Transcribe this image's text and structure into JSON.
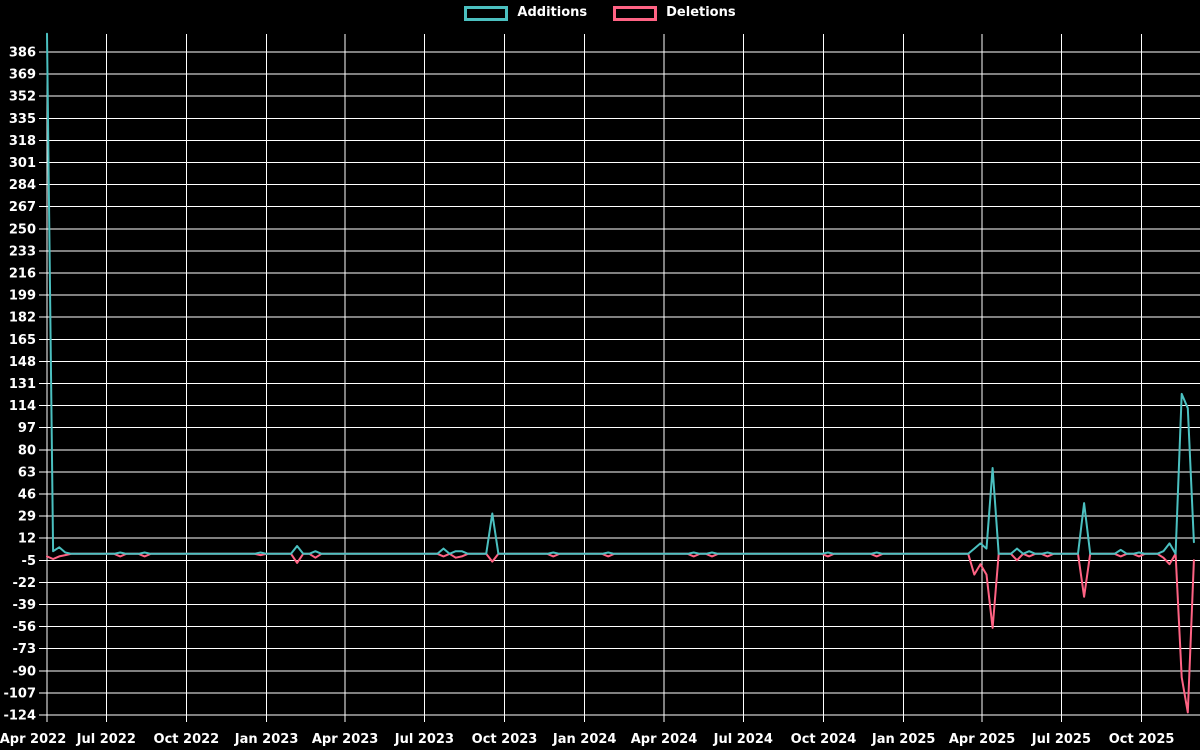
{
  "legend": {
    "items": [
      {
        "label": "Additions",
        "color": "#4bc0c0"
      },
      {
        "label": "Deletions",
        "color": "#ff6384"
      }
    ]
  },
  "chart_data": {
    "type": "line",
    "title": "",
    "background": "#000000",
    "grid": {
      "show": true,
      "color": "#ffffff"
    },
    "legend_position": "top-center",
    "axis_text_color": "#ffffff",
    "series": [
      {
        "name": "Additions",
        "color": "#4bc0c0"
      },
      {
        "name": "Deletions",
        "color": "#ff6384"
      }
    ],
    "y_axis": {
      "min": -124,
      "max": 386,
      "tick_step": 17,
      "plot_top_value": 400,
      "tick_labels": [
        386,
        369,
        352,
        335,
        318,
        301,
        284,
        267,
        250,
        233,
        216,
        199,
        182,
        165,
        148,
        131,
        114,
        97,
        80,
        63,
        46,
        29,
        12,
        -5,
        -22,
        -39,
        -56,
        -73,
        -90,
        -107,
        -124
      ]
    },
    "x_axis": {
      "unit": "week",
      "ticks": [
        {
          "label": "Apr 2022",
          "date": "2022-04-01"
        },
        {
          "label": "Jul 2022",
          "date": "2022-07-01"
        },
        {
          "label": "Oct 2022",
          "date": "2022-10-01"
        },
        {
          "label": "Jan 2023",
          "date": "2023-01-01"
        },
        {
          "label": "Apr 2023",
          "date": "2023-04-01"
        },
        {
          "label": "Jul 2023",
          "date": "2023-07-01"
        },
        {
          "label": "Oct 2023",
          "date": "2023-10-01"
        },
        {
          "label": "Jan 2024",
          "date": "2024-01-01"
        },
        {
          "label": "Apr 2024",
          "date": "2024-04-01"
        },
        {
          "label": "Jul 2024",
          "date": "2024-07-01"
        },
        {
          "label": "Oct 2024",
          "date": "2024-10-01"
        },
        {
          "label": "Jan 2025",
          "date": "2025-01-01"
        },
        {
          "label": "Apr 2025",
          "date": "2025-04-01"
        },
        {
          "label": "Jul 2025",
          "date": "2025-07-01"
        },
        {
          "label": "Oct 2025",
          "date": "2025-10-01"
        }
      ]
    },
    "weeks": {
      "start": "2022-04-24",
      "end": "2025-11-30",
      "baseline_value": 0
    },
    "events": [
      {
        "week": "2022-04-24",
        "additions": 400,
        "deletions": -2
      },
      {
        "week": "2022-05-01",
        "additions": 2,
        "deletions": -4
      },
      {
        "week": "2022-05-08",
        "additions": 5,
        "deletions": -2
      },
      {
        "week": "2022-05-15",
        "additions": 1,
        "deletions": -1
      },
      {
        "week": "2022-07-17",
        "additions": 1,
        "deletions": -2
      },
      {
        "week": "2022-08-14",
        "additions": 1,
        "deletions": -2
      },
      {
        "week": "2022-12-25",
        "additions": 1,
        "deletions": -1
      },
      {
        "week": "2023-02-05",
        "additions": 6,
        "deletions": -7
      },
      {
        "week": "2023-02-26",
        "additions": 2,
        "deletions": -3
      },
      {
        "week": "2023-07-23",
        "additions": 4,
        "deletions": -2
      },
      {
        "week": "2023-08-06",
        "additions": 2,
        "deletions": -3
      },
      {
        "week": "2023-08-13",
        "additions": 2,
        "deletions": -2
      },
      {
        "week": "2023-09-17",
        "additions": 31,
        "deletions": -6
      },
      {
        "week": "2023-11-26",
        "additions": 1,
        "deletions": -2
      },
      {
        "week": "2024-01-28",
        "additions": 1,
        "deletions": -2
      },
      {
        "week": "2024-05-05",
        "additions": 1,
        "deletions": -2
      },
      {
        "week": "2024-05-26",
        "additions": 1,
        "deletions": -2
      },
      {
        "week": "2024-10-06",
        "additions": 1,
        "deletions": -2
      },
      {
        "week": "2024-12-01",
        "additions": 1,
        "deletions": -2
      },
      {
        "week": "2025-03-23",
        "additions": 4,
        "deletions": -16
      },
      {
        "week": "2025-03-30",
        "additions": 8,
        "deletions": -8
      },
      {
        "week": "2025-04-06",
        "additions": 4,
        "deletions": -16
      },
      {
        "week": "2025-04-13",
        "additions": 66,
        "deletions": -57
      },
      {
        "week": "2025-05-11",
        "additions": 4,
        "deletions": -5
      },
      {
        "week": "2025-05-25",
        "additions": 2,
        "deletions": -2
      },
      {
        "week": "2025-06-15",
        "additions": 1,
        "deletions": -2
      },
      {
        "week": "2025-07-27",
        "additions": 39,
        "deletions": -33
      },
      {
        "week": "2025-09-07",
        "additions": 3,
        "deletions": -2
      },
      {
        "week": "2025-09-28",
        "additions": 1,
        "deletions": -2
      },
      {
        "week": "2025-10-26",
        "additions": 2,
        "deletions": -3
      },
      {
        "week": "2025-11-02",
        "additions": 8,
        "deletions": -8
      },
      {
        "week": "2025-11-16",
        "additions": 123,
        "deletions": -95
      },
      {
        "week": "2025-11-23",
        "additions": 112,
        "deletions": -122
      },
      {
        "week": "2025-11-30",
        "additions": 9,
        "deletions": -5
      }
    ]
  }
}
